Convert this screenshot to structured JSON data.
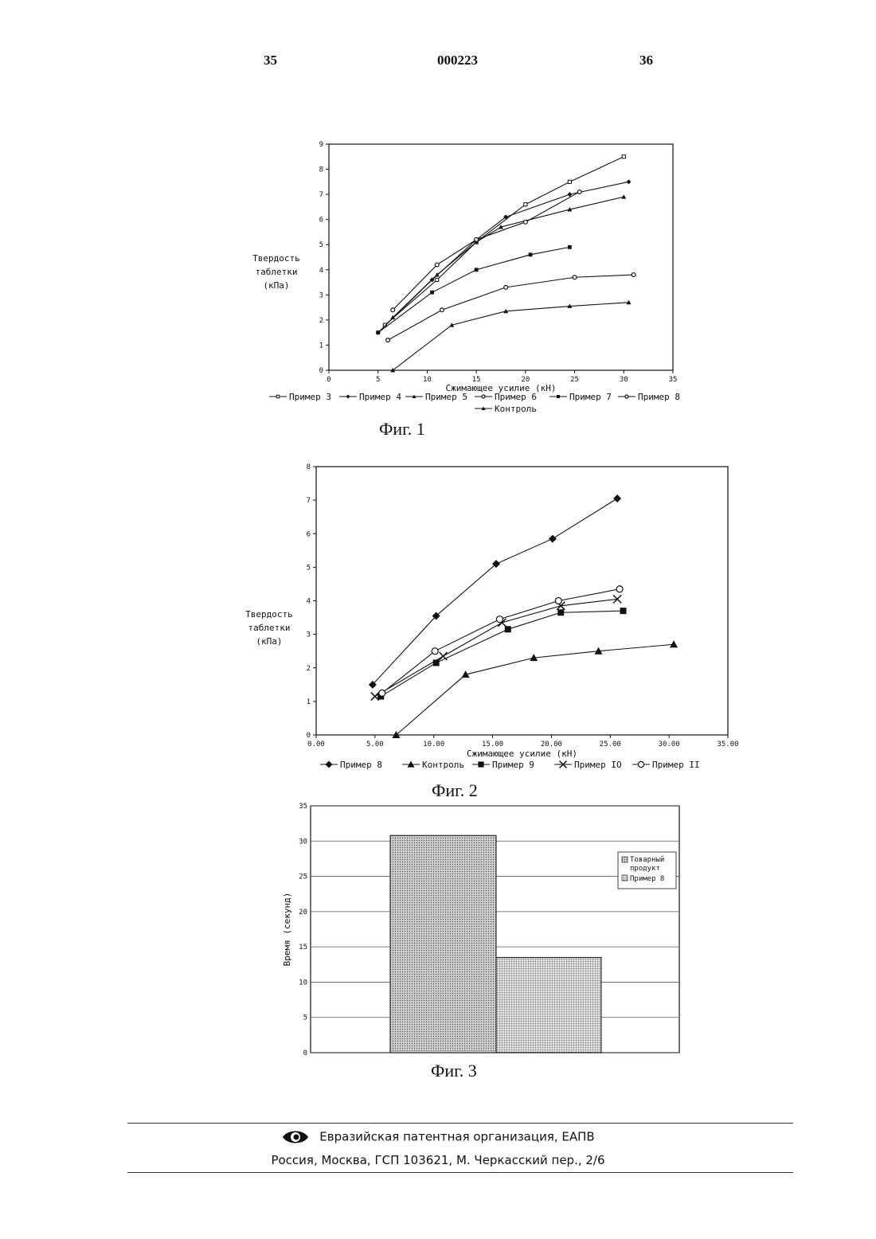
{
  "header": {
    "left_page": "35",
    "doc_number": "000223",
    "right_page": "36"
  },
  "figures": [
    {
      "caption": "Фиг. 1"
    },
    {
      "caption": "Фиг. 2"
    },
    {
      "caption": "Фиг. 3"
    }
  ],
  "footer": {
    "org": "Евразийская патентная организация, ЕАПВ",
    "address": "Россия, Москва, ГСП 103621, М. Черкасский пер., 2/6"
  },
  "chart_data": [
    {
      "type": "line",
      "xlabel": "Сжимающее усилие (кН)",
      "ylabel": [
        "Твердость",
        "таблетки",
        "(кПа)"
      ],
      "xlim": [
        0,
        35
      ],
      "ylim": [
        0,
        9
      ],
      "xticks": [
        0,
        5,
        10,
        15,
        20,
        25,
        30,
        35
      ],
      "yticks": [
        0,
        1,
        2,
        3,
        4,
        5,
        6,
        7,
        8,
        9
      ],
      "xtick_labels": [
        "0",
        "5",
        "10",
        "15",
        "20",
        "25",
        "30",
        "35"
      ],
      "ytick_labels": [
        "0",
        "1",
        "2",
        "3",
        "4",
        "5",
        "6",
        "7",
        "8",
        "9"
      ],
      "legend_position": "bottom",
      "series": [
        {
          "name": "Пример 3",
          "marker": "square-open",
          "points": [
            [
              5.7,
              1.8
            ],
            [
              11,
              3.6
            ],
            [
              15,
              5.1
            ],
            [
              20,
              6.6
            ],
            [
              24.5,
              7.5
            ],
            [
              30,
              8.5
            ]
          ]
        },
        {
          "name": "Пример 4",
          "marker": "diamond",
          "points": [
            [
              5,
              1.5
            ],
            [
              10.5,
              3.6
            ],
            [
              15,
              5.2
            ],
            [
              18,
              6.1
            ],
            [
              24.5,
              7
            ],
            [
              30.5,
              7.5
            ]
          ]
        },
        {
          "name": "Пример 5",
          "marker": "triangle",
          "points": [
            [
              6.5,
              2.1
            ],
            [
              11,
              3.8
            ],
            [
              15,
              5.1
            ],
            [
              17.5,
              5.7
            ],
            [
              24.5,
              6.4
            ],
            [
              30,
              6.9
            ]
          ]
        },
        {
          "name": "Пример 6",
          "marker": "circle-open",
          "points": [
            [
              6.5,
              2.4
            ],
            [
              11,
              4.2
            ],
            [
              15,
              5.2
            ],
            [
              20,
              5.9
            ],
            [
              25.5,
              7.1
            ]
          ]
        },
        {
          "name": "Пример 7",
          "marker": "square",
          "points": [
            [
              5,
              1.5
            ],
            [
              10.5,
              3.1
            ],
            [
              15,
              4.0
            ],
            [
              20.5,
              4.6
            ],
            [
              24.5,
              4.9
            ]
          ]
        },
        {
          "name": "Пример 8",
          "marker": "circle-open",
          "points": [
            [
              6,
              1.2
            ],
            [
              11.5,
              2.4
            ],
            [
              18,
              3.3
            ],
            [
              25,
              3.7
            ],
            [
              31,
              3.8
            ]
          ]
        },
        {
          "name": "Контроль",
          "marker": "triangle",
          "points": [
            [
              6.5,
              0
            ],
            [
              12.5,
              1.8
            ],
            [
              18,
              2.35
            ],
            [
              24.5,
              2.55
            ],
            [
              30.5,
              2.7
            ]
          ]
        }
      ]
    },
    {
      "type": "line",
      "xlabel": "Сжимающее усилие (кН)",
      "ylabel": [
        "Твердость",
        "таблетки",
        "(кПа)"
      ],
      "xlim": [
        0,
        35
      ],
      "ylim": [
        0,
        8
      ],
      "xticks": [
        0,
        5,
        10,
        15,
        20,
        25,
        30,
        35
      ],
      "yticks": [
        0,
        1,
        2,
        3,
        4,
        5,
        6,
        7,
        8
      ],
      "xtick_labels": [
        "0.00",
        "5.00",
        "10.00",
        "15.00",
        "20.00",
        "25.00",
        "30.00",
        "35.00"
      ],
      "ytick_labels": [
        "0",
        "1",
        "2",
        "3",
        "4",
        "5",
        "6",
        "7",
        "8"
      ],
      "legend_position": "bottom",
      "series": [
        {
          "name": "Пример 8",
          "marker": "diamond",
          "points": [
            [
              4.8,
              1.5
            ],
            [
              10.2,
              3.55
            ],
            [
              15.3,
              5.1
            ],
            [
              20.1,
              5.85
            ],
            [
              25.6,
              7.05
            ]
          ]
        },
        {
          "name": "Контроль",
          "marker": "triangle",
          "points": [
            [
              6.8,
              0
            ],
            [
              12.7,
              1.8
            ],
            [
              18.5,
              2.3
            ],
            [
              24,
              2.5
            ],
            [
              30.4,
              2.7
            ]
          ]
        },
        {
          "name": "Пример 9",
          "marker": "square",
          "points": [
            [
              5.5,
              1.15
            ],
            [
              10.2,
              2.15
            ],
            [
              16.3,
              3.15
            ],
            [
              20.8,
              3.65
            ],
            [
              26.1,
              3.7
            ]
          ]
        },
        {
          "name": "Пример IO",
          "marker": "x",
          "points": [
            [
              5,
              1.15
            ],
            [
              10.8,
              2.35
            ],
            [
              15.8,
              3.35
            ],
            [
              20.8,
              3.85
            ],
            [
              25.6,
              4.05
            ]
          ]
        },
        {
          "name": "Пример II",
          "marker": "circle-open",
          "points": [
            [
              5.6,
              1.25
            ],
            [
              10.1,
              2.5
            ],
            [
              15.6,
              3.45
            ],
            [
              20.6,
              4.0
            ],
            [
              25.8,
              4.35
            ]
          ]
        }
      ]
    },
    {
      "type": "bar",
      "ylabel": "Время (секунд)",
      "ylim": [
        0,
        35
      ],
      "yticks": [
        0,
        5,
        10,
        15,
        20,
        25,
        30,
        35
      ],
      "ytick_labels": [
        "0",
        "5",
        "10",
        "15",
        "20",
        "25",
        "30",
        "35"
      ],
      "legend_position": "top-right",
      "series": [
        {
          "name": "Товарный продукт",
          "value": 30.8
        },
        {
          "name": "Пример 8",
          "value": 13.5
        }
      ]
    }
  ]
}
